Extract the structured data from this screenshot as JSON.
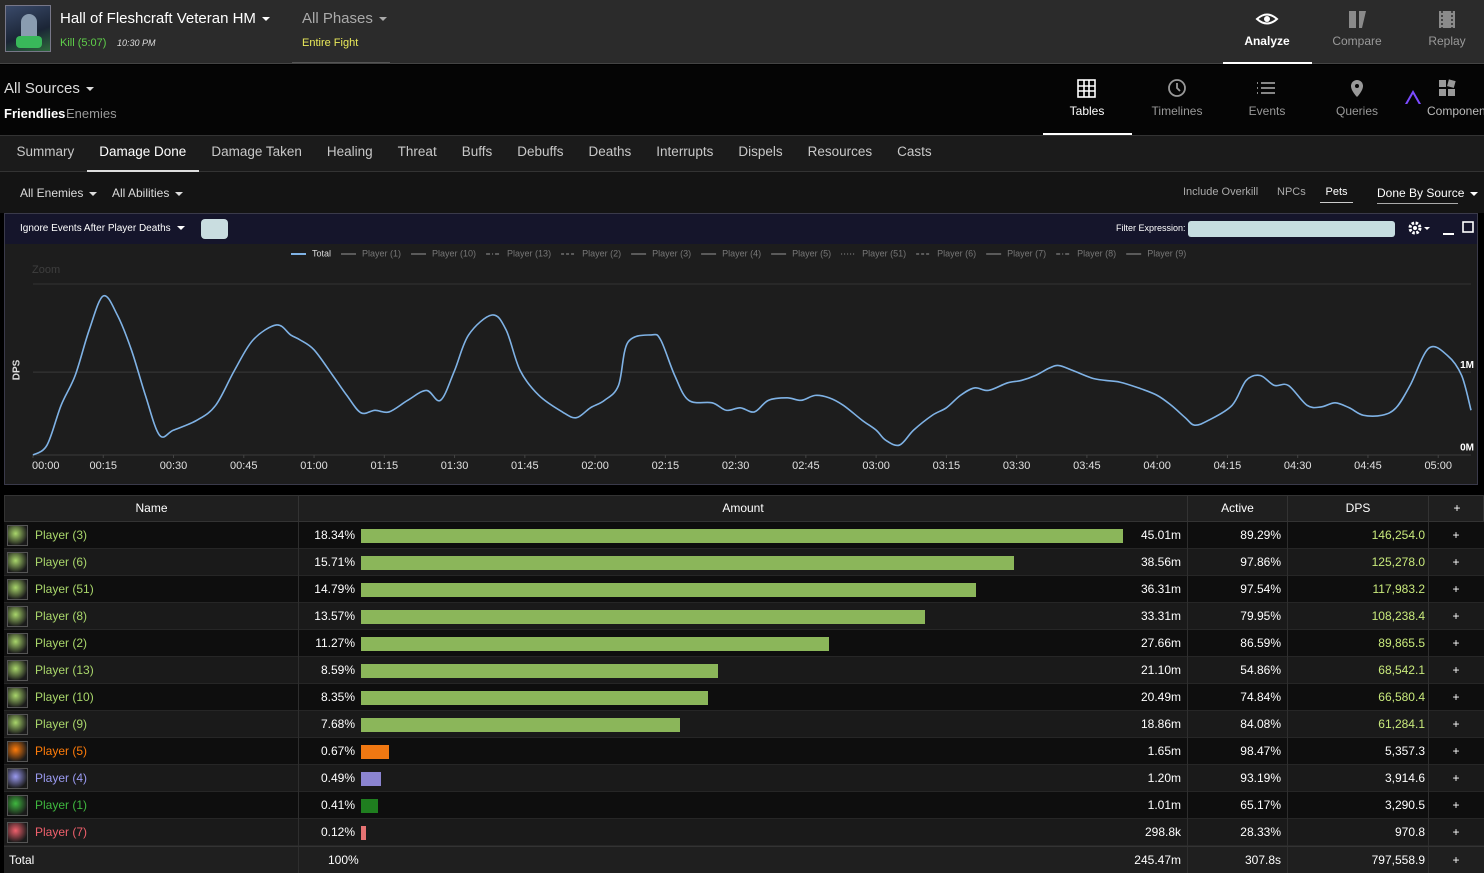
{
  "header": {
    "title": "Hall of Fleshcraft Veteran HM",
    "result": "Kill (5:07)",
    "time": "10:30 PM",
    "phase": "All Phases",
    "phase_detail": "Entire Fight",
    "nav": [
      "Analyze",
      "Compare",
      "Replay"
    ]
  },
  "sources": {
    "title": "All Sources",
    "groups": [
      "Friendlies",
      "Enemies"
    ],
    "views": [
      "Tables",
      "Timelines",
      "Events",
      "Queries",
      "Components"
    ]
  },
  "tabs": [
    "Summary",
    "Damage Done",
    "Damage Taken",
    "Healing",
    "Threat",
    "Buffs",
    "Debuffs",
    "Deaths",
    "Interrupts",
    "Dispels",
    "Resources",
    "Casts"
  ],
  "filters": {
    "enemies": "All Enemies",
    "abilities": "All Abilities",
    "options": [
      "Include Overkill",
      "NPCs",
      "Pets"
    ],
    "grouping": "Done By Source"
  },
  "panel": {
    "deaths_toggle": "Ignore Events After Player Deaths",
    "filter_label": "Filter Expression:",
    "zoom": "Zoom"
  },
  "chart_data": {
    "type": "line",
    "ylabel": "DPS",
    "x": [
      0,
      3,
      6,
      9,
      12,
      15,
      18,
      21,
      24,
      27,
      30,
      35,
      39,
      43,
      47,
      52,
      55,
      57,
      60,
      64,
      67,
      70,
      73,
      76,
      80,
      84,
      87,
      90,
      93,
      98,
      101,
      104,
      108,
      113,
      116,
      119,
      122,
      125,
      127,
      132,
      134,
      137,
      140,
      145,
      148,
      151,
      154,
      157,
      161,
      164,
      167,
      170,
      173,
      177,
      180,
      182,
      185,
      188,
      192,
      195,
      198,
      201,
      204,
      208,
      211,
      214,
      217,
      219,
      222,
      226,
      229,
      232,
      236,
      240,
      243,
      246,
      248,
      251,
      256,
      259,
      262,
      265,
      268,
      272,
      275,
      278,
      281,
      284,
      288,
      291,
      294,
      298,
      302,
      305,
      307
    ],
    "series": [
      {
        "name": "Total",
        "color": "#7fb2e5",
        "values": [
          0,
          120000,
          600000,
          960000,
          1510000,
          1920000,
          1690000,
          1270000,
          720000,
          240000,
          300000,
          420000,
          600000,
          1020000,
          1390000,
          1570000,
          1450000,
          1390000,
          1270000,
          960000,
          720000,
          510000,
          540000,
          520000,
          660000,
          780000,
          660000,
          1020000,
          1450000,
          1690000,
          1510000,
          1020000,
          720000,
          520000,
          450000,
          570000,
          660000,
          840000,
          1360000,
          1450000,
          1390000,
          960000,
          660000,
          630000,
          540000,
          570000,
          520000,
          660000,
          690000,
          660000,
          720000,
          690000,
          600000,
          420000,
          300000,
          180000,
          120000,
          300000,
          480000,
          570000,
          720000,
          810000,
          780000,
          870000,
          900000,
          960000,
          1050000,
          1080000,
          1020000,
          930000,
          900000,
          880000,
          810000,
          720000,
          600000,
          450000,
          360000,
          420000,
          600000,
          900000,
          960000,
          840000,
          840000,
          600000,
          580000,
          630000,
          570000,
          480000,
          480000,
          570000,
          840000,
          1290000,
          1200000,
          960000,
          540000
        ]
      }
    ],
    "hidden_series": [
      {
        "name": "Player (1)",
        "color": "#5a5a5a",
        "dash": "none"
      },
      {
        "name": "Player (10)",
        "color": "#5a5a5a",
        "dash": "none"
      },
      {
        "name": "Player (13)",
        "color": "#5a5a5a",
        "dash": "4,2,1,2"
      },
      {
        "name": "Player (2)",
        "color": "#5a5a5a",
        "dash": "3,2"
      },
      {
        "name": "Player (3)",
        "color": "#5a5a5a",
        "dash": "none"
      },
      {
        "name": "Player (4)",
        "color": "#5a5a5a",
        "dash": "none"
      },
      {
        "name": "Player (5)",
        "color": "#5a5a5a",
        "dash": "none"
      },
      {
        "name": "Player (51)",
        "color": "#5a5a5a",
        "dash": "1,2"
      },
      {
        "name": "Player (6)",
        "color": "#5a5a5a",
        "dash": "3,2"
      },
      {
        "name": "Player (7)",
        "color": "#5a5a5a",
        "dash": "none"
      },
      {
        "name": "Player (8)",
        "color": "#5a5a5a",
        "dash": "4,2,1,2"
      },
      {
        "name": "Player (9)",
        "color": "#5a5a5a",
        "dash": "none"
      }
    ],
    "xlim": [
      0,
      307
    ],
    "xticks": [
      {
        "value": 0,
        "label": "00:00"
      },
      {
        "value": 15,
        "label": "00:15"
      },
      {
        "value": 30,
        "label": "00:30"
      },
      {
        "value": 45,
        "label": "00:45"
      },
      {
        "value": 60,
        "label": "01:00"
      },
      {
        "value": 75,
        "label": "01:15"
      },
      {
        "value": 90,
        "label": "01:30"
      },
      {
        "value": 105,
        "label": "01:45"
      },
      {
        "value": 120,
        "label": "02:00"
      },
      {
        "value": 135,
        "label": "02:15"
      },
      {
        "value": 150,
        "label": "02:30"
      },
      {
        "value": 165,
        "label": "02:45"
      },
      {
        "value": 180,
        "label": "03:00"
      },
      {
        "value": 195,
        "label": "03:15"
      },
      {
        "value": 210,
        "label": "03:30"
      },
      {
        "value": 225,
        "label": "03:45"
      },
      {
        "value": 240,
        "label": "04:00"
      },
      {
        "value": 255,
        "label": "04:15"
      },
      {
        "value": 270,
        "label": "04:30"
      },
      {
        "value": 285,
        "label": "04:45"
      },
      {
        "value": 300,
        "label": "05:00"
      }
    ],
    "ylim": [
      0,
      2330000
    ],
    "yticks": [
      {
        "value": 0,
        "label": "0M"
      },
      {
        "value": 1000000,
        "label": "1M"
      }
    ],
    "grid": true
  },
  "table": {
    "columns": [
      "Name",
      "Amount",
      "Active",
      "DPS"
    ],
    "expand_label": "+",
    "rows": [
      {
        "name": "Player (3)",
        "percent": 18.34,
        "percent_label": "18.34%",
        "amount": "45.01m",
        "active": "89.29%",
        "dps": "146,254.0",
        "color": "#a9d66b",
        "bar_color": "#8bb65a",
        "dps_color": "#c9ea7c"
      },
      {
        "name": "Player (6)",
        "percent": 15.71,
        "percent_label": "15.71%",
        "amount": "38.56m",
        "active": "97.86%",
        "dps": "125,278.0",
        "color": "#a9d66b",
        "bar_color": "#8bb65a",
        "dps_color": "#c9ea7c"
      },
      {
        "name": "Player (51)",
        "percent": 14.79,
        "percent_label": "14.79%",
        "amount": "36.31m",
        "active": "97.54%",
        "dps": "117,983.2",
        "color": "#a9d66b",
        "bar_color": "#8bb65a",
        "dps_color": "#c9ea7c"
      },
      {
        "name": "Player (8)",
        "percent": 13.57,
        "percent_label": "13.57%",
        "amount": "33.31m",
        "active": "79.95%",
        "dps": "108,238.4",
        "color": "#a9d66b",
        "bar_color": "#8bb65a",
        "dps_color": "#c9ea7c"
      },
      {
        "name": "Player (2)",
        "percent": 11.27,
        "percent_label": "11.27%",
        "amount": "27.66m",
        "active": "86.59%",
        "dps": "89,865.5",
        "color": "#a9d66b",
        "bar_color": "#8bb65a",
        "dps_color": "#c9ea7c"
      },
      {
        "name": "Player (13)",
        "percent": 8.59,
        "percent_label": "8.59%",
        "amount": "21.10m",
        "active": "54.86%",
        "dps": "68,542.1",
        "color": "#a9d66b",
        "bar_color": "#8bb65a",
        "dps_color": "#c9ea7c"
      },
      {
        "name": "Player (10)",
        "percent": 8.35,
        "percent_label": "8.35%",
        "amount": "20.49m",
        "active": "74.84%",
        "dps": "66,580.4",
        "color": "#a9d66b",
        "bar_color": "#8bb65a",
        "dps_color": "#c9ea7c"
      },
      {
        "name": "Player (9)",
        "percent": 7.68,
        "percent_label": "7.68%",
        "amount": "18.86m",
        "active": "84.08%",
        "dps": "61,284.1",
        "color": "#a9d66b",
        "bar_color": "#8bb65a",
        "dps_color": "#c9ea7c"
      },
      {
        "name": "Player (5)",
        "percent": 0.67,
        "percent_label": "0.67%",
        "amount": "1.65m",
        "active": "98.47%",
        "dps": "5,357.3",
        "color": "#ff7c0a",
        "bar_color": "#f07812",
        "dps_color": "#ffffff"
      },
      {
        "name": "Player (4)",
        "percent": 0.49,
        "percent_label": "0.49%",
        "amount": "1.20m",
        "active": "93.19%",
        "dps": "3,914.6",
        "color": "#9a9af0",
        "bar_color": "#8b84d0",
        "dps_color": "#ffffff"
      },
      {
        "name": "Player (1)",
        "percent": 0.41,
        "percent_label": "0.41%",
        "amount": "1.01m",
        "active": "65.17%",
        "dps": "3,290.5",
        "color": "#3fb83f",
        "bar_color": "#1f7e1f",
        "dps_color": "#ffffff"
      },
      {
        "name": "Player (7)",
        "percent": 0.12,
        "percent_label": "0.12%",
        "amount": "298.8k",
        "active": "28.33%",
        "dps": "970.8",
        "color": "#f0606c",
        "bar_color": "#e57373",
        "dps_color": "#ffffff"
      }
    ],
    "total": {
      "name": "Total",
      "percent": "100%",
      "amount": "245.47m",
      "active": "307.8s",
      "dps": "797,558.9"
    }
  }
}
